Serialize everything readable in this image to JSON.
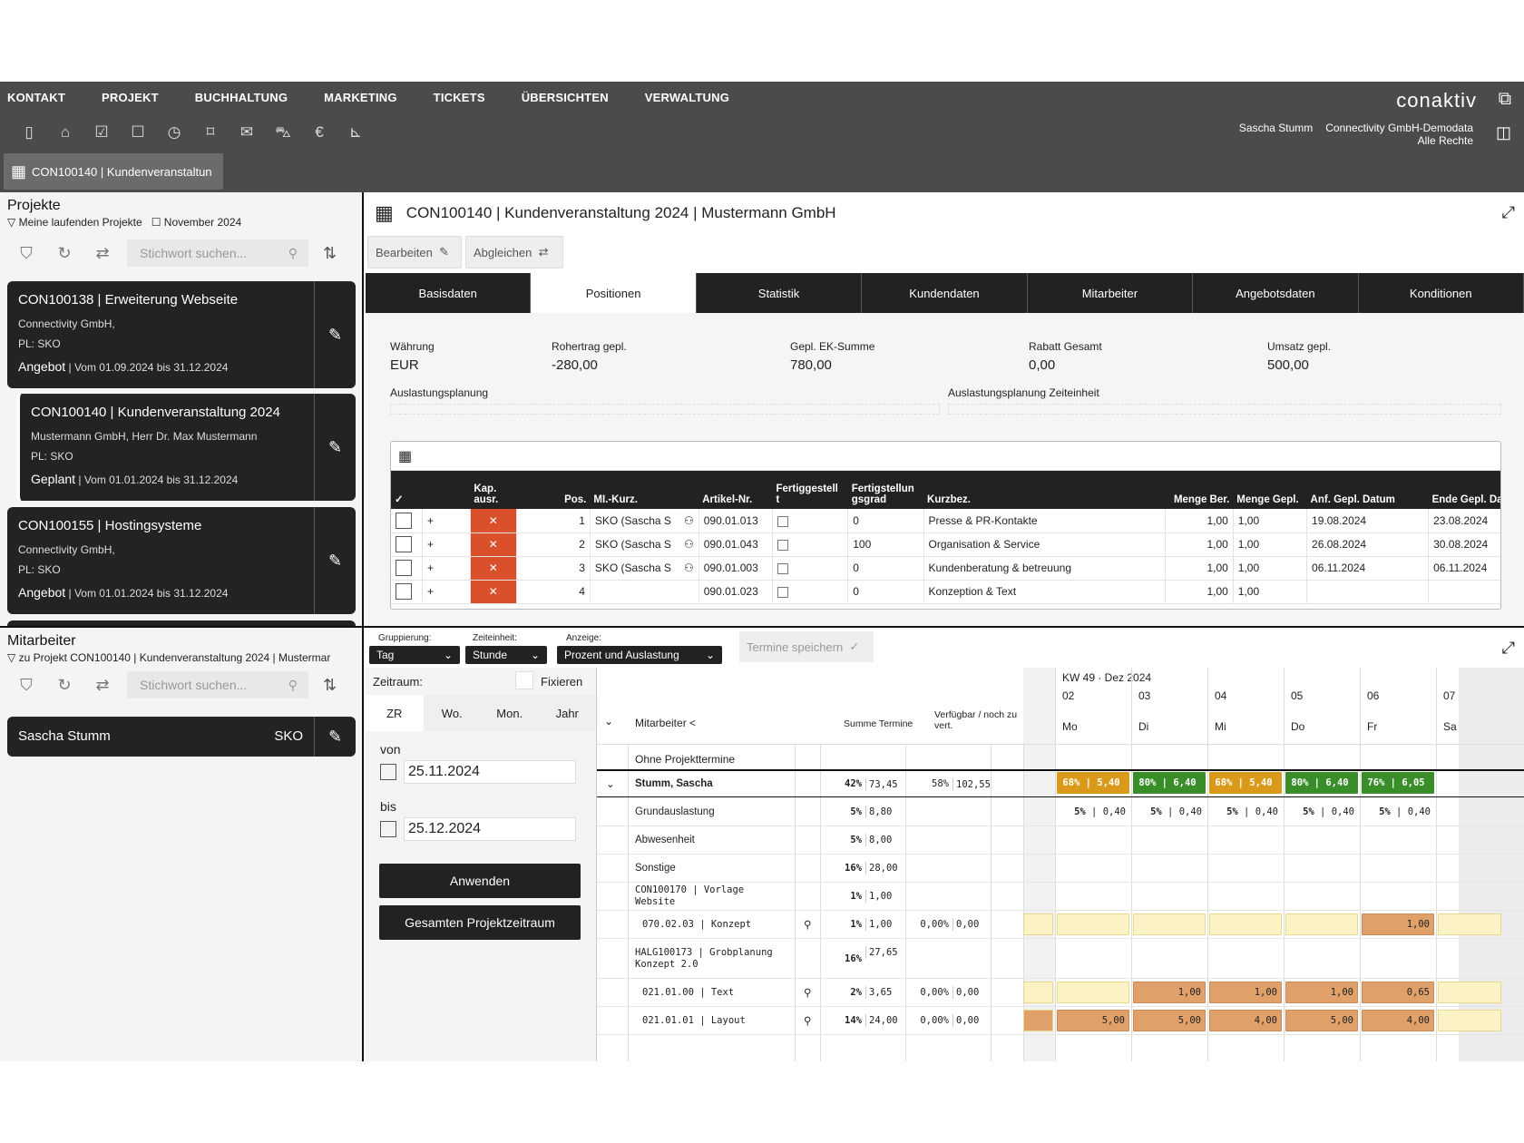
{
  "menu": [
    "KONTAKT",
    "PROJEKT",
    "BUCHHALTUNG",
    "MARKETING",
    "TICKETS",
    "ÜBERSICHTEN",
    "VERWALTUNG"
  ],
  "logo": "conaktiv",
  "user": {
    "name": "Sascha Stumm",
    "company": "Connectivity GmbH-Demodata",
    "rights": "Alle Rechte"
  },
  "open_tab": "CON100140 | Kundenveranstaltun",
  "projects": {
    "title": "Projekte",
    "filter": "Meine laufenden Projekte",
    "month": "November 2024",
    "search_placeholder": "Stichwort suchen...",
    "cards": [
      {
        "title": "CON100138 | Erweiterung Webseite",
        "client": "Connectivity GmbH,",
        "pl": "PL: SKO",
        "status": "Angebot",
        "range": " | Vom 01.09.2024 bis 31.12.2024"
      },
      {
        "title": "CON100140 | Kundenveranstaltung 2024",
        "client": "Mustermann GmbH,  Herr Dr. Max Mustermann",
        "pl": "PL: SKO",
        "status": "Geplant",
        "range": " | Vom 01.01.2024 bis 31.12.2024"
      },
      {
        "title": "CON100155 | Hostingsysteme",
        "client": "Connectivity GmbH,",
        "pl": "PL: SKO",
        "status": "Angebot",
        "range": " | Vom 01.01.2024 bis 31.12.2024"
      }
    ]
  },
  "detail": {
    "title": "CON100140 | Kundenveranstaltung 2024 | Mustermann GmbH",
    "edit": "Bearbeiten",
    "sync": "Abgleichen",
    "tabs": [
      "Basisdaten",
      "Positionen",
      "Statistik",
      "Kundendaten",
      "Mitarbeiter",
      "Angebotsdaten",
      "Konditionen"
    ],
    "fields": {
      "waehrung_l": "Währung",
      "waehrung_v": "EUR",
      "roh_l": "Rohertrag gepl.",
      "roh_v": "-280,00",
      "ek_l": "Gepl. EK-Summe",
      "ek_v": "780,00",
      "rabatt_l": "Rabatt Gesamt",
      "rabatt_v": "0,00",
      "umsatz_l": "Umsatz gepl.",
      "umsatz_v": "500,00",
      "ausl_l": "Auslastungsplanung",
      "ausl_ze_l": "Auslastungsplanung Zeiteinheit"
    },
    "table_headers": [
      "✓",
      "",
      "Kap. ausr.",
      "Pos.",
      "MI.-Kurz.",
      "Artikel-Nr.",
      "Fertiggestell t",
      "Fertigstellun gsgrad",
      "Kurzbez.",
      "Menge Ber.",
      "Menge Gepl.",
      "Anf. Gepl. Datum",
      "Ende Gepl. Da"
    ],
    "rows": [
      {
        "pos": "1",
        "mi": "SKO (Sascha S",
        "art": "090.01.013",
        "grad": "0",
        "kurz": "Presse & PR-Kontakte",
        "mb": "1,00",
        "mg": "1,00",
        "anf": "19.08.2024",
        "ende": "23.08.2024"
      },
      {
        "pos": "2",
        "mi": "SKO (Sascha S",
        "art": "090.01.043",
        "grad": "100",
        "kurz": "Organisation & Service",
        "mb": "1,00",
        "mg": "1,00",
        "anf": "26.08.2024",
        "ende": "30.08.2024"
      },
      {
        "pos": "3",
        "mi": "SKO (Sascha S",
        "art": "090.01.003",
        "grad": "0",
        "kurz": "Kundenberatung & betreuung",
        "mb": "1,00",
        "mg": "1,00",
        "anf": "06.11.2024",
        "ende": "06.11.2024"
      },
      {
        "pos": "4",
        "mi": "",
        "art": "090.01.023",
        "grad": "0",
        "kurz": "Konzeption & Text",
        "mb": "1,00",
        "mg": "1,00",
        "anf": "",
        "ende": ""
      }
    ]
  },
  "staff": {
    "title": "Mitarbeiter",
    "filter": "zu Projekt CON100140 | Kundenveranstaltung 2024 | Mustermar",
    "search_placeholder": "Stichwort suchen...",
    "card_name": "Sascha Stumm",
    "card_code": "SKO"
  },
  "planning": {
    "grp_l": "Gruppierung:",
    "grp_v": "Tag",
    "ze_l": "Zeiteinheit:",
    "ze_v": "Stunde",
    "anz_l": "Anzeige:",
    "anz_v": "Prozent und Auslastung",
    "save": "Termine speichern",
    "zeitraum": "Zeitraum:",
    "fix": "Fixieren",
    "zr_tabs": [
      "ZR",
      "Wo.",
      "Mon.",
      "Jahr"
    ],
    "von_l": "von",
    "von_v": "25.11.2024",
    "bis_l": "bis",
    "bis_v": "25.12.2024",
    "apply": "Anwenden",
    "full": "Gesamten Projektzeitraum",
    "week": "KW 49 · Dez 2024",
    "days": [
      {
        "n": "02",
        "d": "Mo"
      },
      {
        "n": "03",
        "d": "Di"
      },
      {
        "n": "04",
        "d": "Mi"
      },
      {
        "n": "05",
        "d": "Do"
      },
      {
        "n": "06",
        "d": "Fr"
      },
      {
        "n": "07",
        "d": "Sa"
      }
    ],
    "col_ma": "Mitarbeiter <",
    "col_sum": "Summe Termine",
    "col_verf": "Verfügbar / noch zu vert.",
    "ohne": "Ohne Projekttermine",
    "rows": [
      {
        "name": "Stumm, Sascha",
        "pct": "42%",
        "sum": "73,45",
        "vp": "58%",
        "vs": "102,55",
        "bold": true
      },
      {
        "name": "Grundauslastung",
        "pct": "5%",
        "sum": "8,80"
      },
      {
        "name": "Abwesenheit",
        "pct": "5%",
        "sum": "8,00"
      },
      {
        "name": "Sonstige",
        "pct": "16%",
        "sum": "28,00"
      },
      {
        "name": "CON100170 | Vorlage Website",
        "pct": "1%",
        "sum": "1,00"
      },
      {
        "name": "070.02.03 | Konzept",
        "pct": "1%",
        "sum": "1,00",
        "vp": "0,00%",
        "vs": "0,00"
      },
      {
        "name": "HALG100173 | Grobplanung Konzept 2.0",
        "pct": "16%",
        "sum": "27,65"
      },
      {
        "name": "021.01.00 | Text",
        "pct": "2%",
        "sum": "3,65",
        "vp": "0,00%",
        "vs": "0,00"
      },
      {
        "name": "021.01.01 | Layout",
        "pct": "14%",
        "sum": "24,00",
        "vp": "0,00%",
        "vs": "0,00"
      }
    ],
    "load": [
      {
        "pct": "68%",
        "h": "5,40",
        "color": "#d99a1a"
      },
      {
        "pct": "80%",
        "h": "6,40",
        "color": "#3a8e2a"
      },
      {
        "pct": "68%",
        "h": "5,40",
        "color": "#d99a1a"
      },
      {
        "pct": "80%",
        "h": "6,40",
        "color": "#3a8e2a"
      },
      {
        "pct": "76%",
        "h": "6,05",
        "color": "#3a8e2a"
      }
    ],
    "grund": [
      "5%",
      "0,40"
    ],
    "konzept": [
      "",
      "",
      "",
      "",
      "1,00"
    ],
    "text": [
      "",
      "1,00",
      "1,00",
      "1,00",
      "0,65"
    ],
    "layout": [
      "5,00",
      "5,00",
      "4,00",
      "5,00",
      "4,00"
    ]
  }
}
